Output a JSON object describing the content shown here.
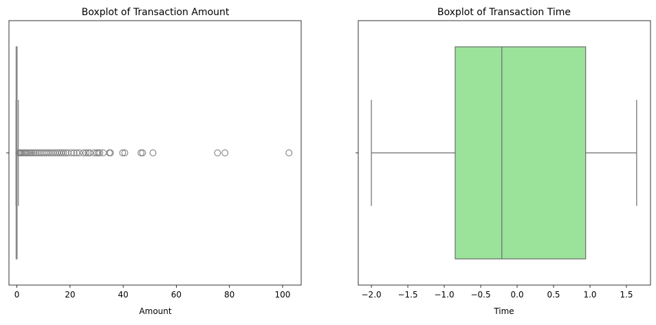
{
  "chart_data": [
    {
      "type": "boxplot",
      "title": "Boxplot of Transaction Amount",
      "xlabel": "Amount",
      "ylabel": "",
      "xlim": [
        -3,
        107
      ],
      "xticks": [
        0,
        20,
        40,
        60,
        80,
        100
      ],
      "box_color": "#add8e6",
      "line_color": "#808080",
      "box": {
        "whisker_low": -0.35,
        "q1": -0.3,
        "median": -0.26,
        "q3": 0.05,
        "whisker_high": 0.55
      },
      "outliers": [
        0.7,
        1.0,
        1.4,
        1.8,
        2.3,
        2.8,
        3.3,
        3.9,
        4.5,
        5.1,
        5.7,
        6.4,
        7.0,
        7.7,
        8.4,
        9.1,
        9.8,
        10.5,
        11.2,
        12.0,
        12.8,
        13.6,
        14.4,
        15.2,
        16.0,
        16.8,
        17.6,
        18.4,
        19.2,
        20.5,
        21.5,
        22.5,
        23.5,
        25.0,
        26.0,
        26.8,
        27.5,
        29.0,
        30.0,
        30.6,
        31.2,
        32.5,
        34.8,
        35.2,
        39.8,
        40.6,
        46.7,
        47.3,
        51.2,
        75.5,
        78.3,
        102.4
      ]
    },
    {
      "type": "boxplot",
      "title": "Boxplot of Transaction Time",
      "xlabel": "Time",
      "ylabel": "",
      "xlim": [
        -2.18,
        1.83
      ],
      "xticks": [
        -2.0,
        -1.5,
        -1.0,
        -0.5,
        0.0,
        0.5,
        1.0,
        1.5
      ],
      "xtick_labels": [
        "−2.0",
        "−1.5",
        "−1.0",
        "−0.5",
        "0.0",
        "0.5",
        "1.0",
        "1.5"
      ],
      "box_color": "#9be39b",
      "line_color": "#6b6b6b",
      "box": {
        "whisker_low": -2.0,
        "q1": -0.85,
        "median": -0.21,
        "q3": 0.94,
        "whisker_high": 1.64
      },
      "outliers": []
    }
  ]
}
